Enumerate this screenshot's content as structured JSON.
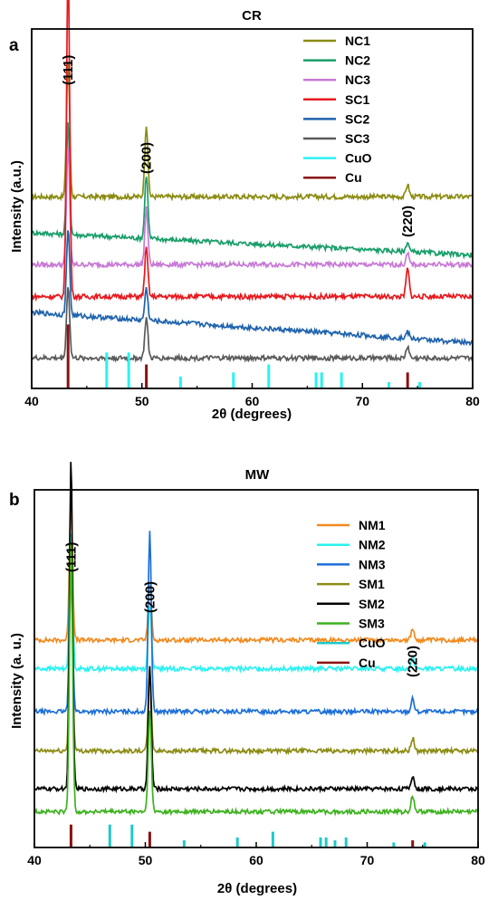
{
  "chart_data": [
    {
      "type": "line",
      "title": "CR",
      "panel_label": "a",
      "xlabel": "2θ (degrees)",
      "ylabel": "Intensity (a.u.)",
      "xlim": [
        40,
        80
      ],
      "xticks": [
        40,
        50,
        60,
        70,
        80
      ],
      "legend_position": "top-right",
      "peak_labels": [
        {
          "text": "(111)",
          "x": 43.3
        },
        {
          "text": "(200)",
          "x": 50.4
        },
        {
          "text": "(220)",
          "x": 74.1
        }
      ],
      "series": [
        {
          "name": "NC1",
          "color": "#8c8c14",
          "baseline": 24,
          "slope": 0,
          "peaks": [
            [
              43.3,
              17
            ],
            [
              50.4,
              9
            ],
            [
              74.1,
              1.5
            ]
          ]
        },
        {
          "name": "NC2",
          "color": "#1a9e6a",
          "baseline": 19.5,
          "slope": -0.07,
          "peaks": [
            [
              43.3,
              14
            ],
            [
              50.4,
              8
            ],
            [
              74.1,
              1.2
            ]
          ]
        },
        {
          "name": "NC3",
          "color": "#c77ad6",
          "baseline": 15.5,
          "slope": 0,
          "peaks": [
            [
              43.3,
              15
            ],
            [
              50.4,
              7
            ],
            [
              74.1,
              1.3
            ]
          ]
        },
        {
          "name": "SC1",
          "color": "#e8181e",
          "baseline": 11.5,
          "slope": 0,
          "peaks": [
            [
              43.3,
              42
            ],
            [
              50.4,
              6
            ],
            [
              74.1,
              3.5
            ]
          ]
        },
        {
          "name": "SC2",
          "color": "#1f63ad",
          "baseline": 9.5,
          "slope": -0.095,
          "peaks": [
            [
              43.3,
              11
            ],
            [
              50.4,
              4
            ],
            [
              74.1,
              0.8
            ]
          ]
        },
        {
          "name": "SC3",
          "color": "#5a5a5a",
          "baseline": 3.8,
          "slope": 0,
          "peaks": [
            [
              43.3,
              9
            ],
            [
              50.4,
              5
            ],
            [
              74.1,
              1.5
            ]
          ]
        },
        {
          "name": "CuO",
          "color": "#28f2f2",
          "type": "reference",
          "sticks": [
            [
              46.8,
              4.5
            ],
            [
              48.8,
              4.5
            ],
            [
              53.5,
              1.5
            ],
            [
              58.3,
              2
            ],
            [
              61.5,
              3
            ],
            [
              65.8,
              2
            ],
            [
              66.3,
              2
            ],
            [
              68.1,
              2
            ],
            [
              72.4,
              0.8
            ],
            [
              75.2,
              0.8
            ]
          ]
        },
        {
          "name": "Cu",
          "color": "#8b1111",
          "type": "reference",
          "sticks": [
            [
              43.3,
              8
            ],
            [
              50.4,
              3
            ],
            [
              74.1,
              2
            ]
          ]
        }
      ]
    },
    {
      "type": "line",
      "title": "MW",
      "panel_label": "b",
      "xlabel": "2θ (degrees)",
      "ylabel": "Intensity (a. u.)",
      "xlim": [
        40,
        80
      ],
      "xticks": [
        40,
        50,
        60,
        70,
        80
      ],
      "legend_position": "top-right",
      "peak_labels": [
        {
          "text": "(111)",
          "x": 43.3
        },
        {
          "text": "(200)",
          "x": 50.4
        },
        {
          "text": "(220)",
          "x": 74.1
        }
      ],
      "series": [
        {
          "name": "NM1",
          "color": "#f28a1e",
          "baseline": 29,
          "slope": 0,
          "peaks": [
            [
              43.3,
              20
            ],
            [
              50.4,
              8
            ],
            [
              74.1,
              1.5
            ]
          ]
        },
        {
          "name": "NM2",
          "color": "#28f2f2",
          "baseline": 25,
          "slope": 0,
          "peaks": [
            [
              43.3,
              19
            ],
            [
              50.4,
              9
            ],
            [
              74.1,
              1.6
            ]
          ]
        },
        {
          "name": "NM3",
          "color": "#1c6fd9",
          "baseline": 19,
          "slope": 0,
          "peaks": [
            [
              43.3,
              22
            ],
            [
              50.4,
              25
            ],
            [
              74.1,
              1.8
            ]
          ]
        },
        {
          "name": "SM1",
          "color": "#8c8c14",
          "baseline": 13.5,
          "slope": 0,
          "peaks": [
            [
              43.3,
              25
            ],
            [
              50.4,
              11
            ],
            [
              74.1,
              1.8
            ]
          ]
        },
        {
          "name": "SM2",
          "color": "#000000",
          "baseline": 8.2,
          "slope": 0,
          "peaks": [
            [
              43.3,
              46
            ],
            [
              50.4,
              17
            ],
            [
              74.1,
              1.8
            ]
          ]
        },
        {
          "name": "SM3",
          "color": "#3cb21e",
          "baseline": 5,
          "slope": 0,
          "peaks": [
            [
              43.3,
              38
            ],
            [
              50.4,
              14
            ],
            [
              74.1,
              2.2
            ]
          ]
        },
        {
          "name": "CuO",
          "color": "#20c8c8",
          "type": "reference",
          "sticks": [
            [
              46.8,
              3.2
            ],
            [
              48.8,
              3.2
            ],
            [
              53.5,
              1
            ],
            [
              58.3,
              1.4
            ],
            [
              61.5,
              2.2
            ],
            [
              65.8,
              1.4
            ],
            [
              66.3,
              1.4
            ],
            [
              67.1,
              1
            ],
            [
              68.1,
              1.4
            ],
            [
              72.4,
              0.7
            ],
            [
              75.2,
              0.7
            ]
          ]
        },
        {
          "name": "Cu",
          "color": "#8b1111",
          "type": "reference",
          "sticks": [
            [
              43.3,
              3.2
            ],
            [
              50.4,
              2.2
            ],
            [
              74.1,
              1
            ]
          ]
        }
      ]
    }
  ]
}
